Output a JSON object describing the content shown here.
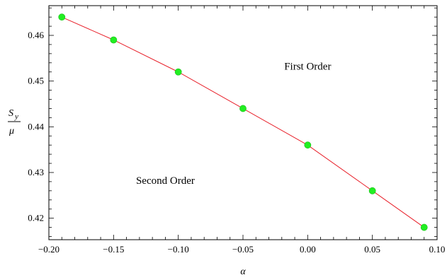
{
  "chart_data": {
    "type": "line",
    "xlabel": "α",
    "ylabel": {
      "numerator": "S",
      "subscript": "y",
      "denominator": "μ"
    },
    "xlim": [
      -0.2,
      0.1
    ],
    "ylim": [
      0.4153,
      0.4665
    ],
    "grid": false,
    "x_ticks": [
      "−0.20",
      "−0.15",
      "−0.10",
      "−0.05",
      "0.00",
      "0.05",
      "0.10"
    ],
    "x_tick_values": [
      -0.2,
      -0.15,
      -0.1,
      -0.05,
      0.0,
      0.05,
      0.1
    ],
    "y_ticks": [
      "0.42",
      "0.43",
      "0.44",
      "0.45",
      "0.46"
    ],
    "y_tick_values": [
      0.42,
      0.43,
      0.44,
      0.45,
      0.46
    ],
    "series": [
      {
        "x": [
          -0.19,
          -0.15,
          -0.1,
          -0.05,
          0.0,
          0.05,
          0.09
        ],
        "y": [
          0.464,
          0.459,
          0.452,
          0.444,
          0.436,
          0.426,
          0.418
        ],
        "line_color": "#e8202a",
        "marker_color": "#22ee22"
      }
    ],
    "annotations": [
      {
        "text": "First Order",
        "x": 0.0,
        "y": 0.4525
      },
      {
        "text": "Second Order",
        "x": -0.11,
        "y": 0.4275
      }
    ]
  }
}
